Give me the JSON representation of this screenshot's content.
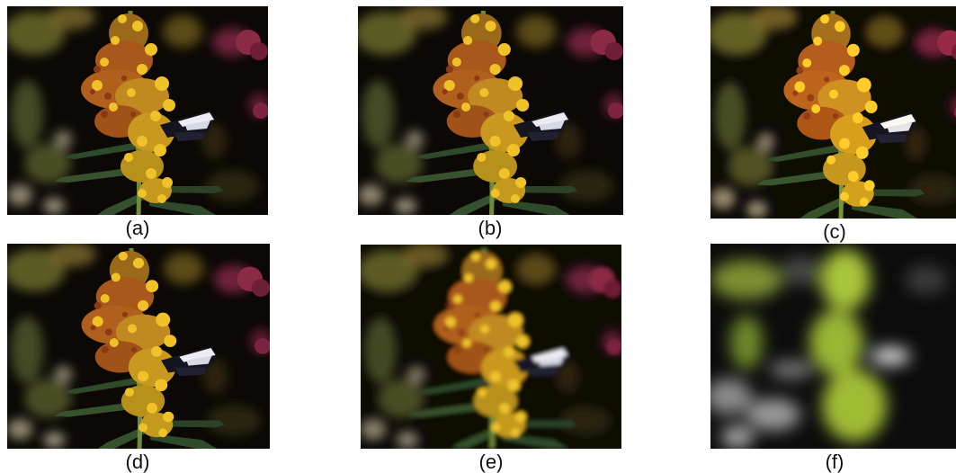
{
  "figure": {
    "panels": [
      {
        "id": "a",
        "caption": "(a)",
        "variant": "sharp"
      },
      {
        "id": "b",
        "caption": "(b)",
        "variant": "sharp"
      },
      {
        "id": "c",
        "caption": "(c)",
        "variant": "sharp-bright"
      },
      {
        "id": "d",
        "caption": "(d)",
        "variant": "sharp"
      },
      {
        "id": "e",
        "caption": "(e)",
        "variant": "blurred"
      },
      {
        "id": "f",
        "caption": "(f)",
        "variant": "heavily-blurred-green"
      }
    ],
    "subject": "yellow flower spike with butterfly on dark background",
    "colors": {
      "background": "#0b0805",
      "flower_yellow": "#e2b020",
      "flower_orange": "#b8641a",
      "stem_green": "#6f8a3a",
      "magenta_blossom": "#8a2a45",
      "butterfly_white": "#eeeeee",
      "f_green": "#a8c43a"
    }
  }
}
